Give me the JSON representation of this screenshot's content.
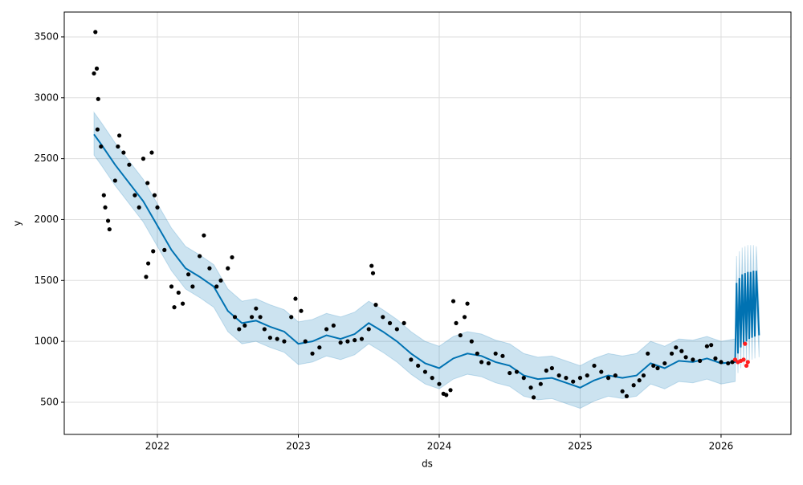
{
  "chart_data": {
    "type": "forecast",
    "xlabel": "ds",
    "ylabel": "y",
    "xlim": [
      2021.339,
      2026.496
    ],
    "ylim": [
      236,
      3704
    ],
    "xticks": [
      2022,
      2023,
      2024,
      2025,
      2026
    ],
    "yticks": [
      500,
      1000,
      1500,
      2000,
      2500,
      3000,
      3500
    ],
    "grid": true,
    "forecast": {
      "color": "#0072B2",
      "x": [
        2021.55,
        2021.6,
        2021.7,
        2021.8,
        2021.9,
        2022.0,
        2022.1,
        2022.2,
        2022.3,
        2022.4,
        2022.5,
        2022.6,
        2022.7,
        2022.8,
        2022.9,
        2023.0,
        2023.1,
        2023.2,
        2023.3,
        2023.4,
        2023.5,
        2023.6,
        2023.7,
        2023.8,
        2023.9,
        2024.0,
        2024.1,
        2024.2,
        2024.3,
        2024.4,
        2024.5,
        2024.6,
        2024.7,
        2024.8,
        2024.9,
        2025.0,
        2025.1,
        2025.2,
        2025.3,
        2025.4,
        2025.5,
        2025.6,
        2025.7,
        2025.8,
        2025.9,
        2026.0,
        2026.1,
        2026.11,
        2026.12,
        2026.13,
        2026.14,
        2026.15,
        2026.16,
        2026.17,
        2026.18,
        2026.19,
        2026.2,
        2026.21,
        2026.22,
        2026.23,
        2026.24,
        2026.25,
        2026.27
      ],
      "values": [
        2700,
        2620,
        2450,
        2300,
        2150,
        1950,
        1750,
        1600,
        1530,
        1450,
        1250,
        1150,
        1170,
        1120,
        1080,
        980,
        1000,
        1050,
        1020,
        1060,
        1150,
        1080,
        1000,
        900,
        820,
        780,
        860,
        900,
        880,
        830,
        800,
        720,
        690,
        700,
        660,
        620,
        680,
        720,
        700,
        720,
        820,
        780,
        840,
        830,
        860,
        820,
        830,
        1480,
        900,
        1520,
        950,
        1550,
        980,
        1560,
        1000,
        1570,
        1020,
        1570,
        1030,
        1580,
        1040,
        1580,
        1050
      ],
      "upper": [
        2880,
        2800,
        2630,
        2480,
        2330,
        2130,
        1930,
        1780,
        1710,
        1630,
        1430,
        1330,
        1350,
        1300,
        1260,
        1160,
        1180,
        1230,
        1200,
        1240,
        1330,
        1260,
        1180,
        1080,
        1000,
        960,
        1040,
        1080,
        1060,
        1010,
        980,
        900,
        870,
        880,
        840,
        800,
        860,
        900,
        880,
        900,
        1000,
        960,
        1020,
        1010,
        1040,
        1000,
        1020,
        1700,
        1120,
        1740,
        1180,
        1770,
        1210,
        1780,
        1230,
        1790,
        1250,
        1790,
        1260,
        1790,
        1270,
        1780,
        1270
      ],
      "lower": [
        2530,
        2450,
        2280,
        2130,
        1980,
        1780,
        1580,
        1430,
        1360,
        1280,
        1080,
        980,
        1000,
        950,
        910,
        810,
        830,
        880,
        850,
        890,
        980,
        910,
        830,
        730,
        650,
        610,
        690,
        730,
        710,
        660,
        630,
        550,
        520,
        530,
        490,
        450,
        510,
        550,
        530,
        550,
        650,
        610,
        670,
        660,
        690,
        650,
        670,
        1310,
        740,
        1350,
        780,
        1380,
        800,
        1380,
        820,
        1380,
        840,
        1370,
        850,
        1370,
        860,
        1370,
        870
      ]
    },
    "observed": {
      "color": "#000000",
      "x": [
        2021.55,
        2021.56,
        2021.57,
        2021.58,
        2021.575,
        2021.6,
        2021.62,
        2021.63,
        2021.65,
        2021.66,
        2021.7,
        2021.72,
        2021.73,
        2021.76,
        2021.8,
        2021.84,
        2021.87,
        2021.9,
        2021.93,
        2021.96,
        2021.98,
        2021.92,
        2021.935,
        2021.97,
        2022.0,
        2022.05,
        2022.1,
        2022.12,
        2022.15,
        2022.18,
        2022.22,
        2022.25,
        2022.3,
        2022.33,
        2022.37,
        2022.42,
        2022.45,
        2022.5,
        2022.53,
        2022.55,
        2022.58,
        2022.62,
        2022.67,
        2022.7,
        2022.73,
        2022.76,
        2022.8,
        2022.85,
        2022.9,
        2022.95,
        2022.98,
        2023.02,
        2023.05,
        2023.1,
        2023.15,
        2023.2,
        2023.25,
        2023.3,
        2023.35,
        2023.4,
        2023.45,
        2023.5,
        2023.52,
        2023.53,
        2023.55,
        2023.6,
        2023.65,
        2023.7,
        2023.75,
        2023.8,
        2023.85,
        2023.9,
        2023.95,
        2024.0,
        2024.03,
        2024.05,
        2024.08,
        2024.1,
        2024.12,
        2024.15,
        2024.18,
        2024.2,
        2024.23,
        2024.27,
        2024.3,
        2024.35,
        2024.4,
        2024.45,
        2024.5,
        2024.55,
        2024.6,
        2024.65,
        2024.67,
        2024.72,
        2024.76,
        2024.8,
        2024.85,
        2024.9,
        2024.95,
        2025.0,
        2025.05,
        2025.1,
        2025.15,
        2025.2,
        2025.25,
        2025.3,
        2025.33,
        2025.38,
        2025.42,
        2025.45,
        2025.48,
        2025.52,
        2025.55,
        2025.6,
        2025.65,
        2025.68,
        2025.72,
        2025.75,
        2025.8,
        2025.85,
        2025.9,
        2025.93,
        2025.96,
        2026.0,
        2026.05,
        2026.08
      ],
      "values": [
        3200,
        3540,
        3240,
        2990,
        2740,
        2600,
        2200,
        2100,
        1990,
        1920,
        2320,
        2600,
        2690,
        2550,
        2450,
        2200,
        2100,
        2500,
        2300,
        2550,
        2200,
        1530,
        1640,
        1740,
        2100,
        1750,
        1450,
        1280,
        1400,
        1310,
        1550,
        1450,
        1700,
        1870,
        1600,
        1450,
        1500,
        1600,
        1690,
        1200,
        1100,
        1130,
        1200,
        1270,
        1200,
        1100,
        1030,
        1020,
        1000,
        1200,
        1350,
        1250,
        1000,
        900,
        950,
        1100,
        1130,
        990,
        1000,
        1010,
        1020,
        1100,
        1620,
        1560,
        1300,
        1200,
        1150,
        1100,
        1150,
        850,
        800,
        750,
        700,
        650,
        570,
        560,
        600,
        1330,
        1150,
        1050,
        1200,
        1310,
        1000,
        900,
        830,
        820,
        900,
        880,
        740,
        750,
        700,
        620,
        540,
        650,
        760,
        780,
        720,
        700,
        670,
        700,
        720,
        800,
        750,
        700,
        720,
        590,
        550,
        640,
        680,
        720,
        900,
        800,
        780,
        820,
        900,
        950,
        920,
        870,
        850,
        840,
        960,
        970,
        860,
        830,
        820,
        830
      ]
    },
    "test": {
      "color": "#ff2020",
      "x": [
        2026.1,
        2026.12,
        2026.14,
        2026.16,
        2026.17,
        2026.18,
        2026.19
      ],
      "values": [
        850,
        830,
        840,
        850,
        980,
        800,
        830
      ]
    }
  }
}
